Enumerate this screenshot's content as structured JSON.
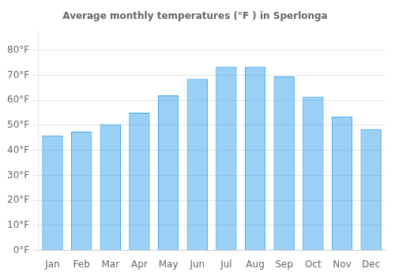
{
  "chart_data": {
    "type": "bar",
    "title": "Average monthly temperatures (°F ) in Sperlonga",
    "categories": [
      "Jan",
      "Feb",
      "Mar",
      "Apr",
      "May",
      "Jun",
      "Jul",
      "Aug",
      "Sep",
      "Oct",
      "Nov",
      "Dec"
    ],
    "values": [
      46,
      47.5,
      50.5,
      55,
      62,
      68.5,
      73.5,
      73.5,
      69.5,
      61.5,
      53.5,
      48.5
    ],
    "ylim": [
      0,
      88
    ],
    "yticks": [
      {
        "value": 0,
        "label": "0°F"
      },
      {
        "value": 10,
        "label": "10°F"
      },
      {
        "value": 20,
        "label": "20°F"
      },
      {
        "value": 30,
        "label": "30°F"
      },
      {
        "value": 40,
        "label": "40°F"
      },
      {
        "value": 50,
        "label": "50°F"
      },
      {
        "value": 60,
        "label": "60°F"
      },
      {
        "value": 70,
        "label": "70°F"
      },
      {
        "value": 80,
        "label": "80°F"
      }
    ],
    "grid": true
  }
}
